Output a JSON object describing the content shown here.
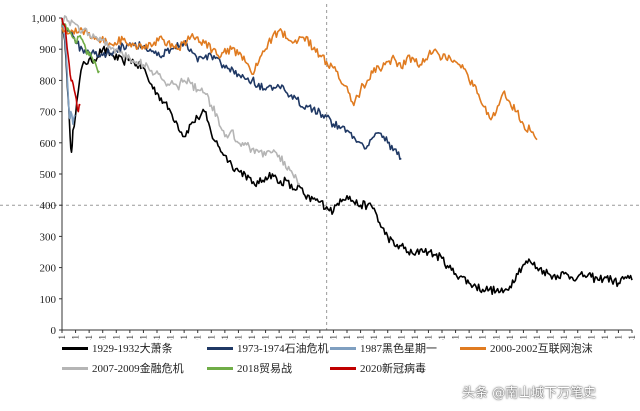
{
  "chart_data": {
    "type": "line",
    "ylim": [
      0,
      1000
    ],
    "yticks": [
      "0",
      "100",
      "200",
      "300",
      "400",
      "500",
      "600",
      "700",
      "800",
      "900",
      "1,000"
    ],
    "xlim": [
      1,
      841
    ],
    "xticks": [
      "1",
      "21",
      "41",
      "61",
      "81",
      "101",
      "121",
      "141",
      "161",
      "181",
      "201",
      "221",
      "241",
      "261",
      "281",
      "301",
      "321",
      "341",
      "361",
      "381",
      "401",
      "421",
      "441",
      "461",
      "481",
      "501",
      "521",
      "541",
      "561",
      "581",
      "601",
      "621",
      "641",
      "661",
      "681",
      "701",
      "721",
      "741",
      "761",
      "781",
      "801",
      "821",
      "841"
    ],
    "reference_lines": {
      "x": 391,
      "y": 400
    },
    "series": [
      {
        "name": "1929-1932大萧条",
        "color": "#000000",
        "points": [
          [
            1,
            1000
          ],
          [
            5,
            930
          ],
          [
            9,
            780
          ],
          [
            13,
            620
          ],
          [
            15,
            570
          ],
          [
            17,
            640
          ],
          [
            21,
            690
          ],
          [
            27,
            800
          ],
          [
            33,
            860
          ],
          [
            45,
            860
          ],
          [
            61,
            900
          ],
          [
            75,
            880
          ],
          [
            91,
            860
          ],
          [
            101,
            870
          ],
          [
            111,
            850
          ],
          [
            121,
            840
          ],
          [
            131,
            790
          ],
          [
            141,
            760
          ],
          [
            151,
            730
          ],
          [
            161,
            700
          ],
          [
            171,
            660
          ],
          [
            181,
            620
          ],
          [
            191,
            660
          ],
          [
            201,
            680
          ],
          [
            211,
            700
          ],
          [
            221,
            630
          ],
          [
            231,
            590
          ],
          [
            241,
            560
          ],
          [
            251,
            530
          ],
          [
            261,
            510
          ],
          [
            271,
            500
          ],
          [
            281,
            470
          ],
          [
            291,
            470
          ],
          [
            301,
            490
          ],
          [
            311,
            500
          ],
          [
            321,
            470
          ],
          [
            331,
            480
          ],
          [
            341,
            450
          ],
          [
            351,
            460
          ],
          [
            361,
            420
          ],
          [
            371,
            420
          ],
          [
            381,
            410
          ],
          [
            391,
            395
          ],
          [
            401,
            380
          ],
          [
            411,
            420
          ],
          [
            421,
            430
          ],
          [
            431,
            410
          ],
          [
            441,
            400
          ],
          [
            451,
            400
          ],
          [
            461,
            390
          ],
          [
            471,
            330
          ],
          [
            481,
            300
          ],
          [
            491,
            270
          ],
          [
            501,
            270
          ],
          [
            511,
            250
          ],
          [
            521,
            240
          ],
          [
            531,
            260
          ],
          [
            541,
            250
          ],
          [
            551,
            240
          ],
          [
            561,
            230
          ],
          [
            571,
            200
          ],
          [
            581,
            180
          ],
          [
            591,
            170
          ],
          [
            601,
            150
          ],
          [
            611,
            140
          ],
          [
            621,
            130
          ],
          [
            631,
            130
          ],
          [
            641,
            125
          ],
          [
            651,
            120
          ],
          [
            661,
            140
          ],
          [
            671,
            180
          ],
          [
            681,
            210
          ],
          [
            691,
            220
          ],
          [
            701,
            200
          ],
          [
            711,
            190
          ],
          [
            721,
            175
          ],
          [
            731,
            175
          ],
          [
            741,
            180
          ],
          [
            751,
            170
          ],
          [
            761,
            170
          ],
          [
            771,
            175
          ],
          [
            781,
            170
          ],
          [
            791,
            160
          ],
          [
            801,
            170
          ],
          [
            811,
            160
          ],
          [
            821,
            150
          ],
          [
            831,
            170
          ],
          [
            841,
            160
          ]
        ]
      },
      {
        "name": "1973-1974石油危机",
        "color": "#1f3864",
        "points": [
          [
            1,
            1000
          ],
          [
            11,
            960
          ],
          [
            21,
            920
          ],
          [
            31,
            900
          ],
          [
            41,
            890
          ],
          [
            61,
            880
          ],
          [
            81,
            900
          ],
          [
            101,
            920
          ],
          [
            121,
            910
          ],
          [
            131,
            900
          ],
          [
            141,
            880
          ],
          [
            161,
            900
          ],
          [
            181,
            920
          ],
          [
            191,
            900
          ],
          [
            201,
            860
          ],
          [
            221,
            880
          ],
          [
            241,
            840
          ],
          [
            261,
            820
          ],
          [
            281,
            800
          ],
          [
            301,
            770
          ],
          [
            321,
            780
          ],
          [
            341,
            740
          ],
          [
            361,
            720
          ],
          [
            381,
            700
          ],
          [
            401,
            660
          ],
          [
            421,
            640
          ],
          [
            431,
            620
          ],
          [
            441,
            600
          ],
          [
            451,
            590
          ],
          [
            461,
            620
          ],
          [
            471,
            630
          ],
          [
            481,
            600
          ],
          [
            491,
            580
          ],
          [
            501,
            550
          ]
        ]
      },
      {
        "name": "1987黑色星期一",
        "color": "#7f9fc0",
        "points": [
          [
            1,
            1000
          ],
          [
            5,
            940
          ],
          [
            8,
            850
          ],
          [
            10,
            760
          ],
          [
            12,
            680
          ],
          [
            14,
            700
          ],
          [
            17,
            660
          ],
          [
            20,
            690
          ]
        ]
      },
      {
        "name": "2000-2002互联网泡沫",
        "color": "#e07b20",
        "points": [
          [
            1,
            970
          ],
          [
            11,
            950
          ],
          [
            31,
            960
          ],
          [
            51,
            940
          ],
          [
            71,
            920
          ],
          [
            91,
            930
          ],
          [
            111,
            900
          ],
          [
            131,
            920
          ],
          [
            151,
            930
          ],
          [
            171,
            900
          ],
          [
            191,
            940
          ],
          [
            211,
            920
          ],
          [
            231,
            880
          ],
          [
            251,
            900
          ],
          [
            271,
            860
          ],
          [
            281,
            820
          ],
          [
            291,
            860
          ],
          [
            301,
            900
          ],
          [
            311,
            940
          ],
          [
            321,
            960
          ],
          [
            341,
            920
          ],
          [
            361,
            940
          ],
          [
            371,
            900
          ],
          [
            381,
            880
          ],
          [
            391,
            860
          ],
          [
            401,
            840
          ],
          [
            411,
            800
          ],
          [
            421,
            780
          ],
          [
            431,
            720
          ],
          [
            441,
            770
          ],
          [
            451,
            800
          ],
          [
            461,
            840
          ],
          [
            471,
            830
          ],
          [
            481,
            860
          ],
          [
            491,
            870
          ],
          [
            501,
            840
          ],
          [
            511,
            880
          ],
          [
            521,
            860
          ],
          [
            531,
            850
          ],
          [
            541,
            880
          ],
          [
            551,
            900
          ],
          [
            561,
            870
          ],
          [
            571,
            880
          ],
          [
            581,
            860
          ],
          [
            591,
            850
          ],
          [
            601,
            800
          ],
          [
            611,
            780
          ],
          [
            621,
            720
          ],
          [
            631,
            680
          ],
          [
            641,
            700
          ],
          [
            651,
            760
          ],
          [
            661,
            730
          ],
          [
            671,
            700
          ],
          [
            681,
            660
          ],
          [
            691,
            640
          ],
          [
            701,
            610
          ]
        ]
      },
      {
        "name": "2007-2009金融危机",
        "color": "#b5b5b5",
        "points": [
          [
            1,
            1000
          ],
          [
            11,
            990
          ],
          [
            21,
            980
          ],
          [
            31,
            960
          ],
          [
            41,
            950
          ],
          [
            51,
            940
          ],
          [
            61,
            930
          ],
          [
            71,
            910
          ],
          [
            81,
            900
          ],
          [
            91,
            880
          ],
          [
            101,
            870
          ],
          [
            111,
            860
          ],
          [
            121,
            850
          ],
          [
            131,
            830
          ],
          [
            141,
            830
          ],
          [
            151,
            800
          ],
          [
            161,
            790
          ],
          [
            171,
            780
          ],
          [
            181,
            800
          ],
          [
            191,
            790
          ],
          [
            201,
            770
          ],
          [
            211,
            760
          ],
          [
            221,
            720
          ],
          [
            231,
            680
          ],
          [
            241,
            620
          ],
          [
            251,
            640
          ],
          [
            261,
            600
          ],
          [
            271,
            600
          ],
          [
            281,
            580
          ],
          [
            291,
            570
          ],
          [
            301,
            560
          ],
          [
            311,
            570
          ],
          [
            321,
            560
          ],
          [
            331,
            520
          ],
          [
            341,
            500
          ],
          [
            351,
            470
          ]
        ]
      },
      {
        "name": "2018贸易战",
        "color": "#70ad47",
        "points": [
          [
            1,
            990
          ],
          [
            6,
            980
          ],
          [
            11,
            960
          ],
          [
            16,
            940
          ],
          [
            21,
            920
          ],
          [
            26,
            940
          ],
          [
            31,
            930
          ],
          [
            36,
            900
          ],
          [
            41,
            880
          ],
          [
            46,
            870
          ],
          [
            51,
            850
          ],
          [
            56,
            830
          ]
        ]
      },
      {
        "name": "2020新冠病毒",
        "color": "#c00000",
        "points": [
          [
            1,
            1000
          ],
          [
            4,
            980
          ],
          [
            7,
            940
          ],
          [
            10,
            880
          ],
          [
            13,
            820
          ],
          [
            16,
            800
          ],
          [
            19,
            770
          ],
          [
            22,
            740
          ],
          [
            25,
            700
          ],
          [
            28,
            720
          ]
        ]
      }
    ]
  },
  "watermark_text": "头条 @南山城下万笔史"
}
